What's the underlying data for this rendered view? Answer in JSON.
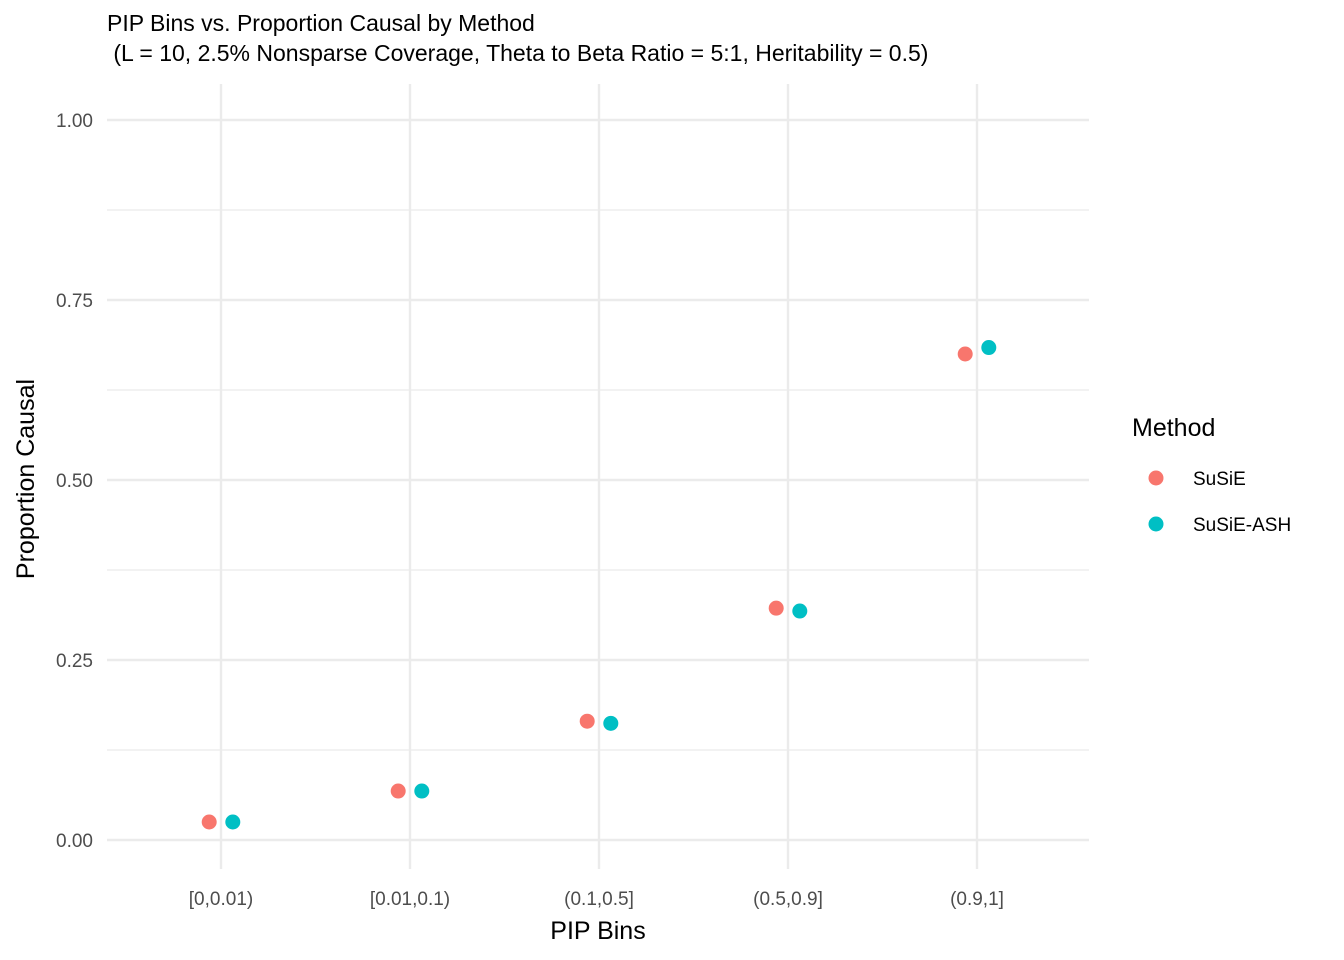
{
  "chart_data": {
    "type": "scatter",
    "title": "PIP Bins vs. Proportion Causal by Method",
    "subtitle": " (L = 10, 2.5% Nonsparse Coverage, Theta to Beta Ratio = 5:1, Heritability = 0.5)",
    "xlabel": "PIP Bins",
    "ylabel": "Proportion Causal",
    "categories": [
      "[0,0.01)",
      "[0.01,0.1)",
      "(0.1,0.5]",
      "(0.5,0.9]",
      "(0.9,1]"
    ],
    "ylim": [
      -0.04,
      1.05
    ],
    "yticks": [
      0.0,
      0.25,
      0.5,
      0.75,
      1.0
    ],
    "ytick_labels": [
      "0.00",
      "0.25",
      "0.50",
      "0.75",
      "1.00"
    ],
    "grid": true,
    "legend": {
      "title": "Method",
      "position": "right"
    },
    "series": [
      {
        "name": "SuSiE",
        "color": "#F8766D",
        "values": [
          0.025,
          0.068,
          0.165,
          0.322,
          0.675
        ]
      },
      {
        "name": "SuSiE-ASH",
        "color": "#00BFC4",
        "values": [
          0.025,
          0.068,
          0.162,
          0.318,
          0.684
        ]
      }
    ]
  }
}
